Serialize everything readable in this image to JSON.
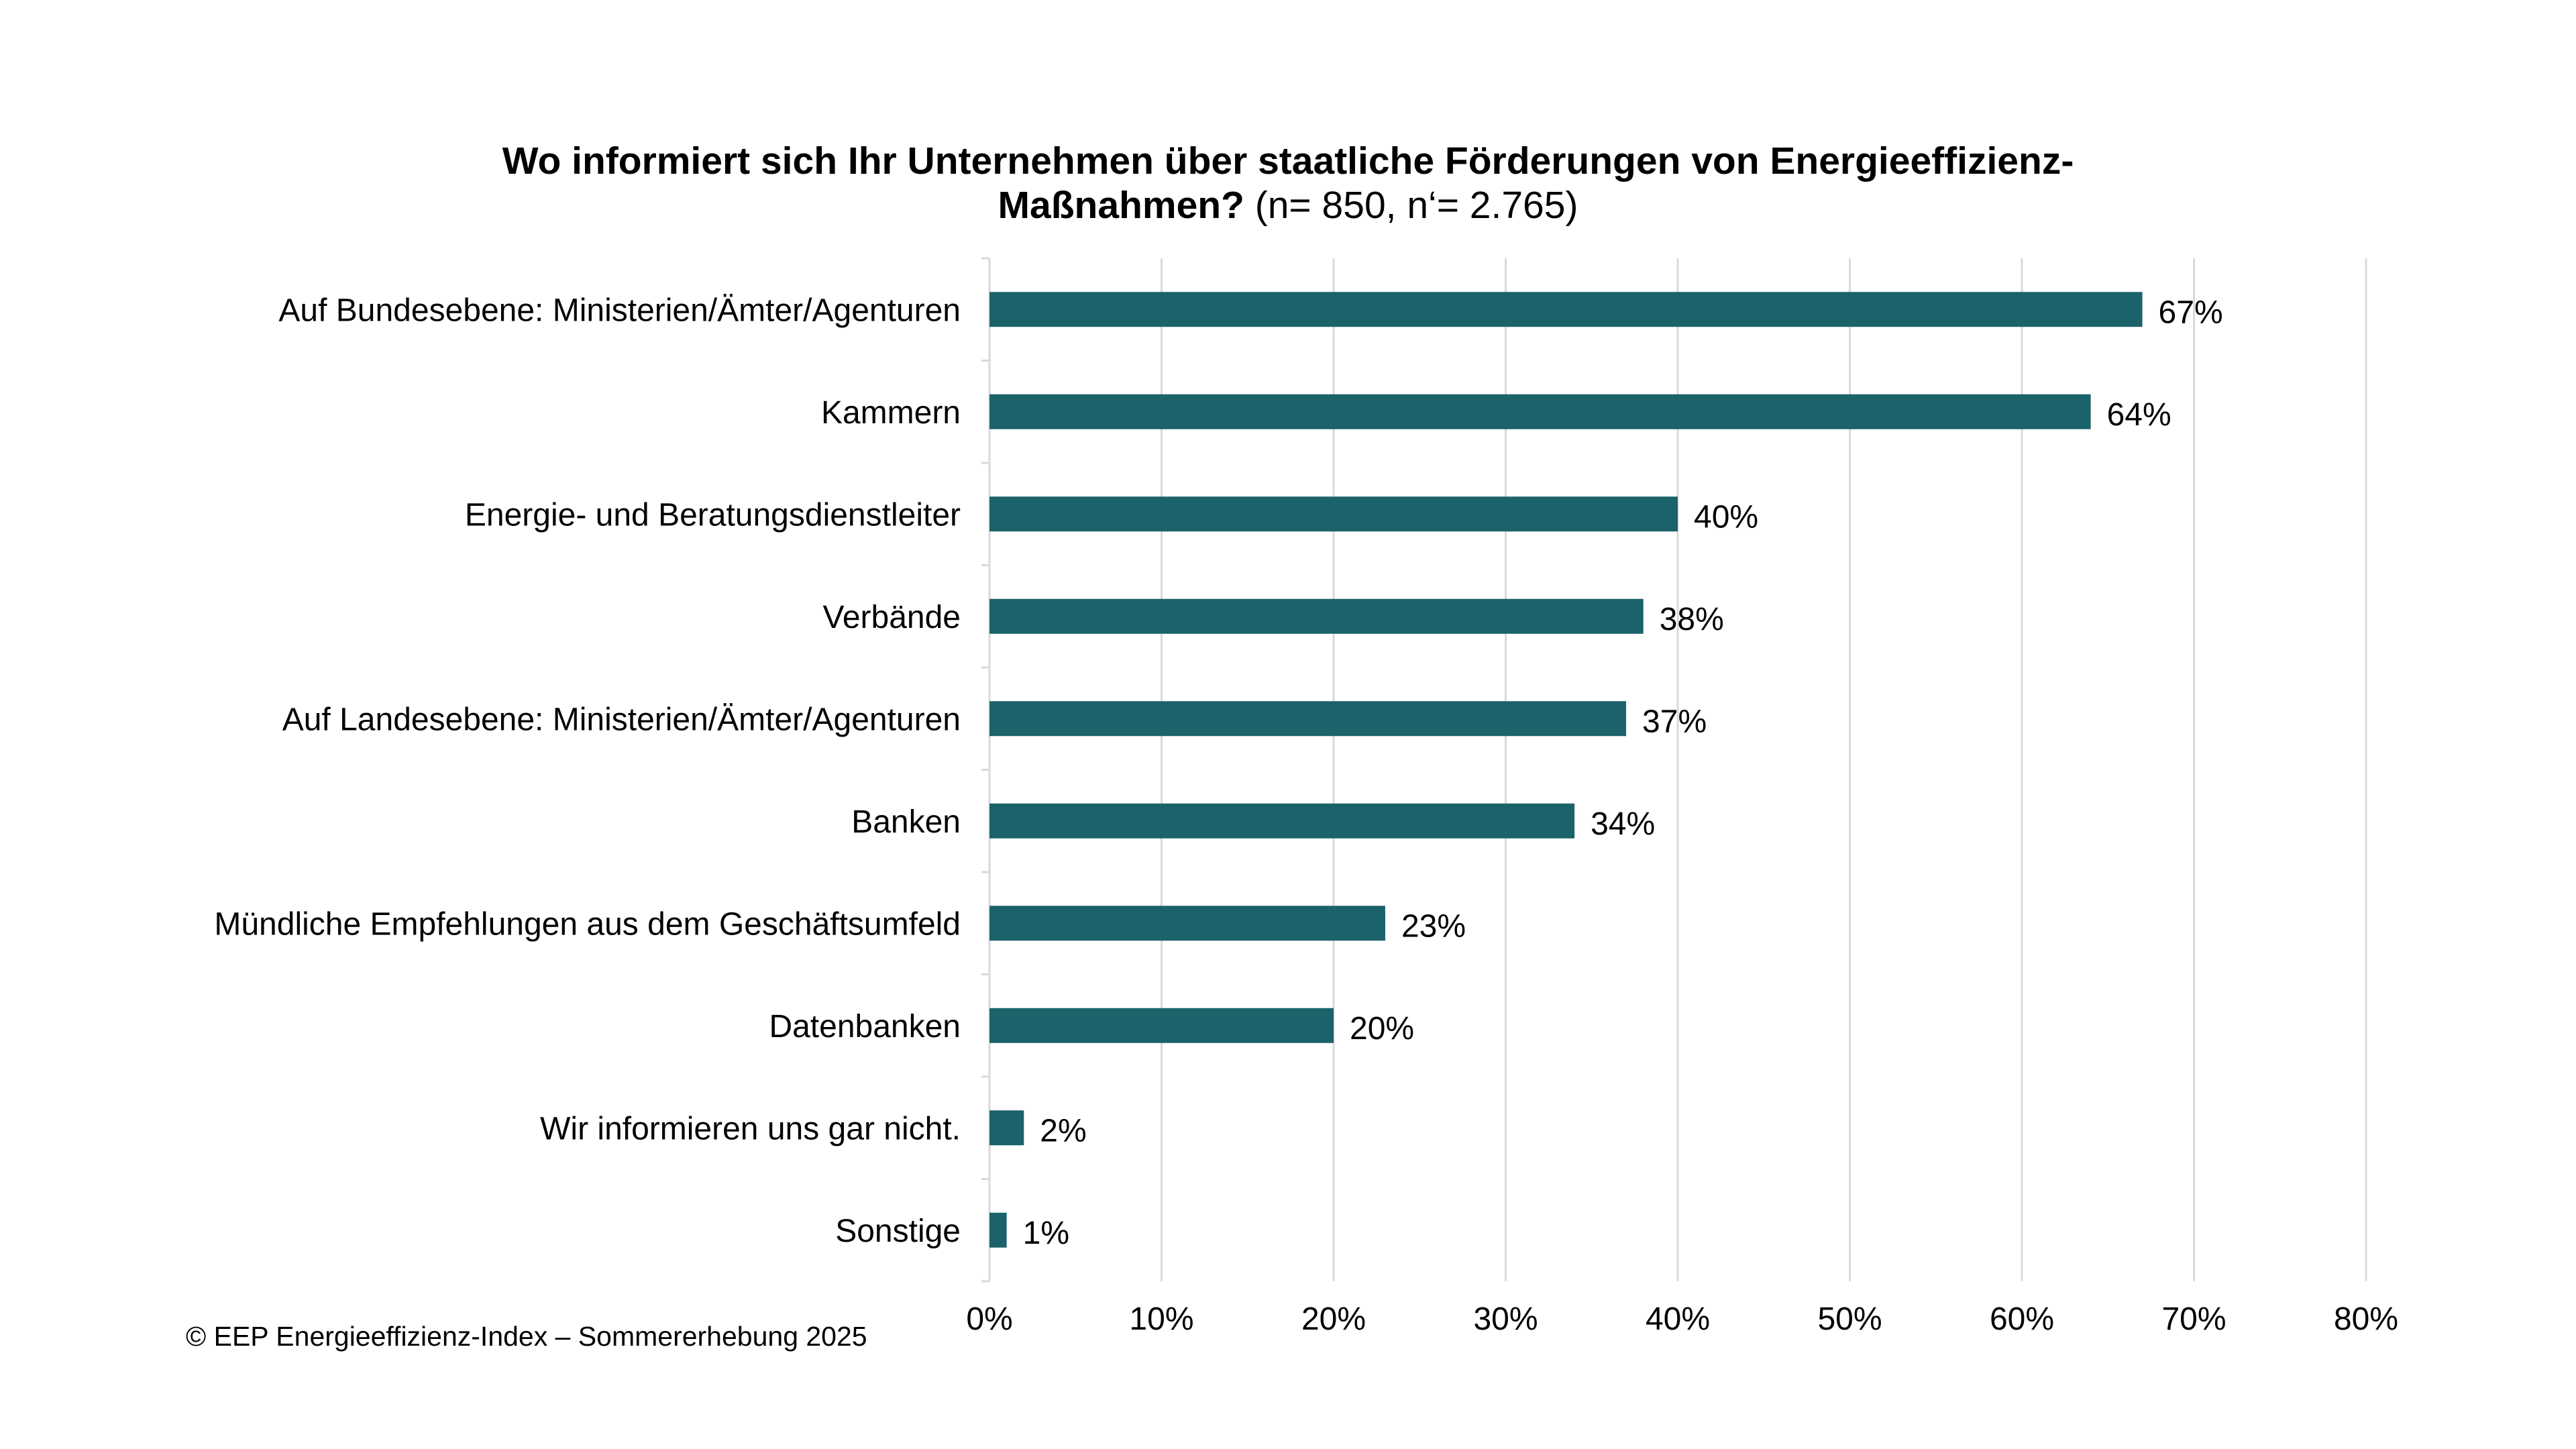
{
  "chart_data": {
    "type": "bar",
    "orientation": "horizontal",
    "title_bold_line1": "Wo informiert sich Ihr Unternehmen über staatliche Förderungen von Energieeffizienz-",
    "title_bold_line2": "Maßnahmen?",
    "title_suffix": " (n= 850, n‘= 2.765)",
    "categories": [
      "Auf Bundesebene: Ministerien/Ämter/Agenturen",
      "Kammern",
      "Energie- und Beratungsdienstleiter",
      "Verbände",
      "Auf Landesebene: Ministerien/Ämter/Agenturen",
      "Banken",
      "Mündliche Empfehlungen aus dem Geschäftsumfeld",
      "Datenbanken",
      "Wir informieren uns gar nicht.",
      "Sonstige"
    ],
    "values": [
      67,
      64,
      40,
      38,
      37,
      34,
      23,
      20,
      2,
      1
    ],
    "value_labels": [
      "67%",
      "64%",
      "40%",
      "38%",
      "37%",
      "34%",
      "23%",
      "20%",
      "2%",
      "1%"
    ],
    "xlim": [
      0,
      80
    ],
    "x_ticks": [
      0,
      10,
      20,
      30,
      40,
      50,
      60,
      70,
      80
    ],
    "x_tick_labels": [
      "0%",
      "10%",
      "20%",
      "30%",
      "40%",
      "50%",
      "60%",
      "70%",
      "80%"
    ],
    "bar_color": "#1c626a",
    "grid": true,
    "grid_color": "#d9d9d9",
    "legend": false
  },
  "footer": {
    "source": "© EEP Energieeffizienz-Index – Sommererhebung 2025"
  }
}
